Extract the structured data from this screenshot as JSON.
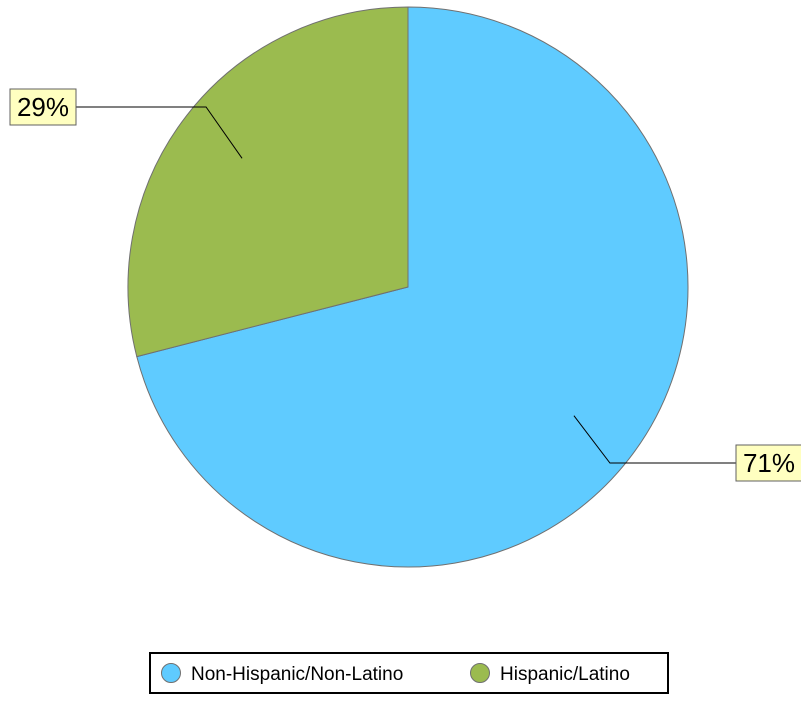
{
  "chart_data": {
    "type": "pie",
    "start_angle_deg": 0,
    "direction": "clockwise",
    "slices": [
      {
        "label": "Non-Hispanic/Non-Latino",
        "value": 71,
        "data_label": "71%",
        "color": "#5fcbff"
      },
      {
        "label": "Hispanic/Latino",
        "value": 29,
        "data_label": "29%",
        "color": "#9bbb4f"
      }
    ],
    "legend": {
      "position": "bottom",
      "entries": [
        "Non-Hispanic/Non-Latino",
        "Hispanic/Latino"
      ]
    },
    "colors": {
      "slice_border": "#707070",
      "label_background": "#ffffc0",
      "label_border": "#606060",
      "leader_line": "#000000"
    }
  }
}
